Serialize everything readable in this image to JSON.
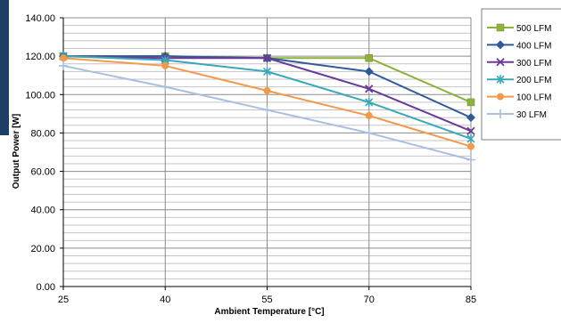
{
  "chart_data": {
    "type": "line",
    "title": "",
    "xlabel": "Ambient Temperature [°C]",
    "ylabel": "Output Power [W]",
    "x": [
      25,
      40,
      55,
      70,
      85
    ],
    "x_tick_labels": [
      "25",
      "40",
      "55",
      "70",
      "85"
    ],
    "ylim": [
      0,
      140
    ],
    "y_tick_labels": [
      "0.00",
      "20.00",
      "40.00",
      "60.00",
      "80.00",
      "100.00",
      "120.00",
      "140.00"
    ],
    "y_major_step": 20,
    "y_minor_step": 4,
    "grid": true,
    "legend_position": "right",
    "series": [
      {
        "name": "500 LFM",
        "values": [
          120,
          120,
          119,
          119,
          96
        ],
        "color": "#8db23a",
        "marker": "square"
      },
      {
        "name": "400 LFM",
        "values": [
          120,
          120,
          119,
          112,
          88
        ],
        "color": "#2f5b9a",
        "marker": "diamond"
      },
      {
        "name": "300 LFM",
        "values": [
          120,
          119,
          119,
          103,
          81
        ],
        "color": "#6a3a9a",
        "marker": "x"
      },
      {
        "name": "200 LFM",
        "values": [
          120,
          118,
          112,
          96,
          77
        ],
        "color": "#3aa8b8",
        "marker": "asterisk"
      },
      {
        "name": "100 LFM",
        "values": [
          119,
          115,
          102,
          89,
          73
        ],
        "color": "#f39a4a",
        "marker": "circle"
      },
      {
        "name": "30 LFM",
        "values": [
          115,
          104,
          92,
          80,
          66
        ],
        "color": "#a8c0de",
        "marker": "plus"
      }
    ]
  }
}
